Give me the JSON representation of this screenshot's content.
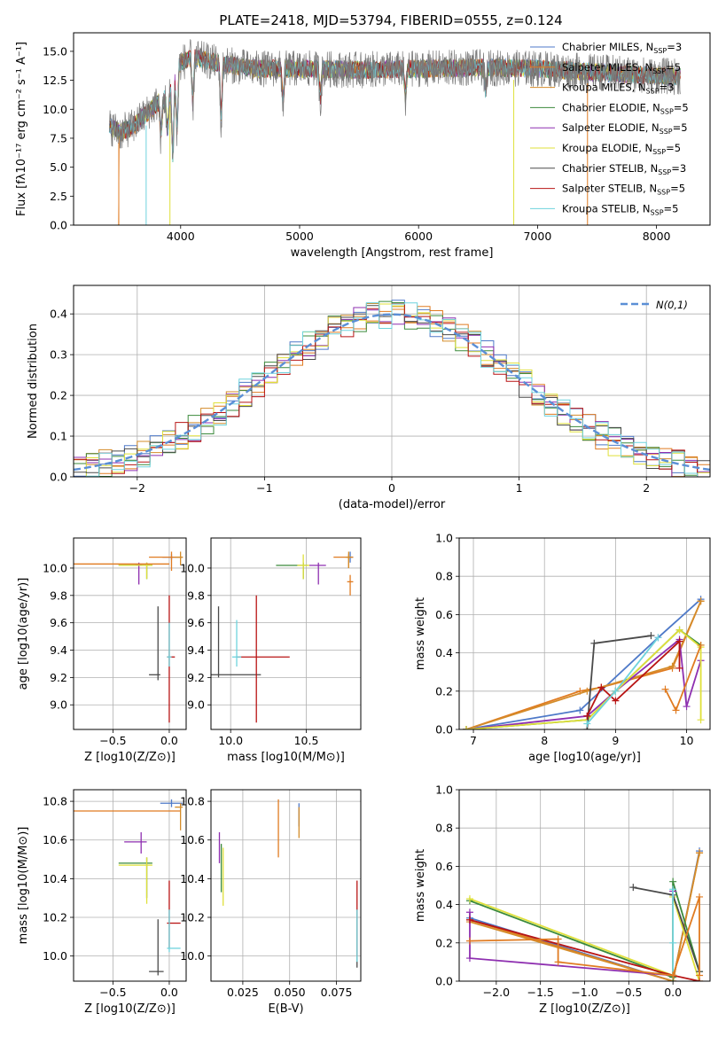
{
  "title": "PLATE=2418, MJD=53794, FIBERID=0555, z=0.124",
  "colors": {
    "Chabrier MILES": "#4e79c8",
    "Salpeter MILES": "#e07b21",
    "Kroupa MILES": "#d48c2a",
    "Chabrier ELODIE": "#3b8a3b",
    "Salpeter ELODIE": "#8e2fb0",
    "Kroupa ELODIE": "#dfe03a",
    "Chabrier STELIB": "#4a4a4a",
    "Salpeter STELIB": "#b81414",
    "Kroupa STELIB": "#6ed3dd"
  },
  "legend": [
    {
      "name": "Chabrier MILES",
      "pre": "Chabrier MILES, N",
      "sub": "SSP",
      "post": "=3"
    },
    {
      "name": "Salpeter MILES",
      "pre": "Salpeter MILES, N",
      "sub": "SSP",
      "post": "=5"
    },
    {
      "name": "Kroupa MILES",
      "pre": "Kroupa MILES, N",
      "sub": "SSP",
      "post": "=3"
    },
    {
      "name": "Chabrier ELODIE",
      "pre": "Chabrier ELODIE, N",
      "sub": "SSP",
      "post": "=5"
    },
    {
      "name": "Salpeter ELODIE",
      "pre": "Salpeter ELODIE, N",
      "sub": "SSP",
      "post": "=5"
    },
    {
      "name": "Kroupa ELODIE",
      "pre": "Kroupa ELODIE, N",
      "sub": "SSP",
      "post": "=5"
    },
    {
      "name": "Chabrier STELIB",
      "pre": "Chabrier STELIB, N",
      "sub": "SSP",
      "post": "=3"
    },
    {
      "name": "Salpeter STELIB",
      "pre": "Salpeter STELIB, N",
      "sub": "SSP",
      "post": "=5"
    },
    {
      "name": "Kroupa STELIB",
      "pre": "Kroupa STELIB, N",
      "sub": "SSP",
      "post": "=5"
    }
  ],
  "chart_data": [
    {
      "id": "spectrum",
      "type": "line",
      "xlabel": "wavelength [Angstrom, rest frame]",
      "ylabel": "Flux [fλ10⁻¹⁷ erg cm⁻² s⁻¹ A⁻¹]",
      "xlim": [
        3100,
        8450
      ],
      "ylim": [
        0,
        16.6
      ],
      "xticks": [
        "4000",
        "5000",
        "6000",
        "7000",
        "8000"
      ],
      "yticks": [
        "0.0",
        "2.5",
        "5.0",
        "7.5",
        "10.0",
        "12.5",
        "15.0"
      ],
      "continuum": {
        "x": [
          3400,
          3500,
          3600,
          3700,
          3800,
          3900,
          3950,
          4000,
          4100,
          4300,
          4600,
          5000,
          5500,
          6000,
          6500,
          7000,
          7500,
          8000,
          8200
        ],
        "y": [
          8.5,
          8.0,
          8.5,
          9.5,
          10.5,
          11.0,
          12.5,
          14.0,
          14.5,
          14.0,
          13.5,
          13.5,
          13.4,
          13.5,
          13.6,
          13.5,
          13.2,
          12.9,
          12.8
        ]
      },
      "series_note": "observed spectrum (grey) with nine stellar population model fits"
    },
    {
      "id": "residuals",
      "type": "area",
      "xlabel": "(data-model)/error",
      "ylabel": "Normed distribution",
      "xlim": [
        -2.5,
        2.5
      ],
      "ylim": [
        0,
        0.47
      ],
      "xticks": [
        "−2",
        "−1",
        "0",
        "1",
        "2"
      ],
      "yticks": [
        "0.0",
        "0.1",
        "0.2",
        "0.3",
        "0.4"
      ],
      "bin_width": 0.1,
      "gaussian_label": "N(0,1)",
      "gaussian": {
        "mean": 0,
        "sigma": 1
      }
    },
    {
      "id": "age-vs-Z",
      "type": "scatter",
      "xlabel": "Z [log10(Z/Z⊙)]",
      "ylabel": "age  [log10(age/yr)]",
      "xlim": [
        -0.85,
        0.15
      ],
      "ylim": [
        8.82,
        10.22
      ],
      "xticks": [
        "−0.5",
        "0.0"
      ],
      "yticks": [
        "9.0",
        "9.2",
        "9.4",
        "9.6",
        "9.8",
        "10.0"
      ],
      "points": [
        {
          "s": "Chabrier MILES",
          "x": 0.02,
          "xerr": [
            0.08,
            0.1
          ],
          "y": 10.08,
          "yerr": [
            0.02,
            0.02
          ]
        },
        {
          "s": "Salpeter MILES",
          "x": 0.02,
          "xerr": [
            0.2,
            0.1
          ],
          "y": 10.08,
          "yerr": [
            0.1,
            0.04
          ]
        },
        {
          "s": "Kroupa MILES",
          "x": 0.1,
          "xerr": [
            0.05,
            0.02
          ],
          "y": 10.08,
          "yerr": [
            0.06,
            0.04
          ]
        },
        {
          "s": "Chabrier ELODIE",
          "x": -0.2,
          "xerr": [
            0.25,
            0.05
          ],
          "y": 10.02,
          "yerr": [
            0.1,
            0.02
          ]
        },
        {
          "s": "Salpeter ELODIE",
          "x": -0.27,
          "xerr": [
            0.03,
            0.03
          ],
          "y": 10.02,
          "yerr": [
            0.14,
            0.02
          ]
        },
        {
          "s": "Kroupa ELODIE",
          "x": -0.2,
          "xerr": [
            0.25,
            0.05
          ],
          "y": 10.02,
          "yerr": [
            0.1,
            0.02
          ]
        },
        {
          "s": "Chabrier STELIB",
          "x": -0.1,
          "xerr": [
            0.08,
            0.02
          ],
          "y": 9.22,
          "yerr": [
            0.04,
            0.5
          ]
        },
        {
          "s": "Salpeter STELIB",
          "x": 0.0,
          "xerr": [
            0.02,
            0.05
          ],
          "y": 9.35,
          "yerr": [
            0.48,
            0.45
          ]
        },
        {
          "s": "Kroupa STELIB",
          "x": 0.0,
          "xerr": [
            0.02,
            0.02
          ],
          "y": 9.35,
          "yerr": [
            0.07,
            0.25
          ]
        },
        {
          "s": "Salpeter MILES",
          "x": -0.1,
          "xerr": [
            0.75,
            0.1
          ],
          "y": 10.03,
          "yerr": [
            0.0,
            0.0
          ]
        }
      ]
    },
    {
      "id": "age-vs-mass",
      "type": "scatter",
      "xlabel": "mass [log10(M/M⊙)]",
      "ylabel": "",
      "xlim": [
        9.87,
        10.86
      ],
      "ylim": [
        8.82,
        10.22
      ],
      "xticks": [
        "10.0",
        "10.5"
      ],
      "yticks": [
        "9.0",
        "9.2",
        "9.4",
        "9.6",
        "9.8",
        "10.0"
      ],
      "points": [
        {
          "s": "Chabrier MILES",
          "x": 10.79,
          "xerr": [
            0.02,
            0.02
          ],
          "y": 10.08,
          "yerr": [
            0.04,
            0.04
          ]
        },
        {
          "s": "Salpeter MILES",
          "x": 10.78,
          "xerr": [
            0.1,
            0.03
          ],
          "y": 10.08,
          "yerr": [
            0.08,
            0.02
          ]
        },
        {
          "s": "Kroupa MILES",
          "x": 10.78,
          "xerr": [
            0.02,
            0.02
          ],
          "y": 10.08,
          "yerr": [
            0.08,
            0.04
          ]
        },
        {
          "s": "Chabrier ELODIE",
          "x": 10.48,
          "xerr": [
            0.18,
            0.03
          ],
          "y": 10.02,
          "yerr": [
            0.1,
            0.02
          ]
        },
        {
          "s": "Salpeter ELODIE",
          "x": 10.58,
          "xerr": [
            0.06,
            0.05
          ],
          "y": 10.02,
          "yerr": [
            0.14,
            0.02
          ]
        },
        {
          "s": "Kroupa ELODIE",
          "x": 10.48,
          "xerr": [
            0.04,
            0.04
          ],
          "y": 10.02,
          "yerr": [
            0.1,
            0.08
          ]
        },
        {
          "s": "Chabrier STELIB",
          "x": 9.92,
          "xerr": [
            0.06,
            0.28
          ],
          "y": 9.22,
          "yerr": [
            0.02,
            0.5
          ]
        },
        {
          "s": "Salpeter STELIB",
          "x": 10.17,
          "xerr": [
            0.13,
            0.22
          ],
          "y": 9.35,
          "yerr": [
            0.48,
            0.45
          ]
        },
        {
          "s": "Kroupa STELIB",
          "x": 10.04,
          "xerr": [
            0.03,
            0.03
          ],
          "y": 9.35,
          "yerr": [
            0.07,
            0.27
          ]
        },
        {
          "s": "Salpeter MILES",
          "x": 10.79,
          "xerr": [
            0.02,
            0.02
          ],
          "y": 9.9,
          "yerr": [
            0.1,
            0.05
          ]
        }
      ]
    },
    {
      "id": "massweight-vs-age",
      "type": "line",
      "xlabel": "age  [log10(age/yr)]",
      "ylabel": "mass weight",
      "xlim": [
        6.8,
        10.33
      ],
      "ylim": [
        0,
        1.0
      ],
      "xticks": [
        "7",
        "8",
        "9",
        "10"
      ],
      "yticks": [
        "0.0",
        "0.2",
        "0.4",
        "0.6",
        "0.8",
        "1.0"
      ],
      "series": [
        {
          "s": "Chabrier MILES",
          "x": [
            6.9,
            8.5,
            9.6,
            10.2
          ],
          "y": [
            0.0,
            0.1,
            0.48,
            0.68
          ]
        },
        {
          "s": "Salpeter MILES",
          "x": [
            6.9,
            8.5,
            8.8,
            9.8,
            10.2
          ],
          "y": [
            0.0,
            0.2,
            0.22,
            0.32,
            0.67
          ]
        },
        {
          "s": "Kroupa MILES",
          "x": [
            6.9,
            8.6,
            9.8,
            10.2
          ],
          "y": [
            0.0,
            0.2,
            0.33,
            0.67
          ]
        },
        {
          "s": "Chabrier ELODIE",
          "x": [
            6.9,
            8.6,
            9.0,
            9.9,
            10.2
          ],
          "y": [
            0.0,
            0.05,
            0.2,
            0.52,
            0.44
          ]
        },
        {
          "s": "Salpeter ELODIE",
          "x": [
            6.9,
            8.6,
            9.0,
            9.9,
            10.0,
            10.2
          ],
          "y": [
            0.0,
            0.07,
            0.2,
            0.47,
            0.12,
            0.36
          ]
        },
        {
          "s": "Kroupa ELODIE",
          "x": [
            6.9,
            8.6,
            9.0,
            9.9,
            10.2,
            10.2
          ],
          "y": [
            0.0,
            0.05,
            0.2,
            0.52,
            0.43,
            0.05
          ]
        },
        {
          "s": "Chabrier STELIB",
          "x": [
            8.6,
            8.7,
            9.5
          ],
          "y": [
            0.0,
            0.45,
            0.49
          ]
        },
        {
          "s": "Salpeter STELIB",
          "x": [
            8.6,
            8.8,
            9.0,
            9.9,
            9.9
          ],
          "y": [
            0.07,
            0.22,
            0.15,
            0.46,
            0.32
          ]
        },
        {
          "s": "Kroupa STELIB",
          "x": [
            8.6,
            9.0,
            9.6
          ],
          "y": [
            0.03,
            0.2,
            0.48
          ]
        },
        {
          "s": "Salpeter MILES",
          "x": [
            9.7,
            9.85,
            10.2
          ],
          "y": [
            0.21,
            0.1,
            0.44
          ]
        }
      ]
    },
    {
      "id": "mass-vs-Z",
      "type": "scatter",
      "xlabel": "Z [log10(Z/Z⊙)]",
      "ylabel": "mass [log10(M/M⊙)]",
      "xlim": [
        -0.85,
        0.15
      ],
      "ylim": [
        9.87,
        10.86
      ],
      "xticks": [
        "−0.5",
        "0.0"
      ],
      "yticks": [
        "10.0",
        "10.2",
        "10.4",
        "10.6",
        "10.8"
      ],
      "points": [
        {
          "s": "Chabrier MILES",
          "x": 0.02,
          "xerr": [
            0.1,
            0.1
          ],
          "y": 10.79,
          "yerr": [
            0.02,
            0.02
          ]
        },
        {
          "s": "Salpeter MILES",
          "x": -0.1,
          "xerr": [
            0.75,
            0.2
          ],
          "y": 10.75,
          "yerr": [
            0.0,
            0.0
          ]
        },
        {
          "s": "Kroupa MILES",
          "x": 0.1,
          "xerr": [
            0.05,
            0.02
          ],
          "y": 10.77,
          "yerr": [
            0.12,
            0.02
          ]
        },
        {
          "s": "Chabrier ELODIE",
          "x": -0.2,
          "xerr": [
            0.25,
            0.05
          ],
          "y": 10.48,
          "yerr": [
            0.18,
            0.03
          ]
        },
        {
          "s": "Salpeter ELODIE",
          "x": -0.25,
          "xerr": [
            0.15,
            0.05
          ],
          "y": 10.59,
          "yerr": [
            0.06,
            0.05
          ]
        },
        {
          "s": "Kroupa ELODIE",
          "x": -0.2,
          "xerr": [
            0.25,
            0.05
          ],
          "y": 10.47,
          "yerr": [
            0.2,
            0.04
          ]
        },
        {
          "s": "Chabrier STELIB",
          "x": -0.1,
          "xerr": [
            0.08,
            0.05
          ],
          "y": 9.92,
          "yerr": [
            0.02,
            0.27
          ]
        },
        {
          "s": "Salpeter STELIB",
          "x": 0.0,
          "xerr": [
            0.02,
            0.1
          ],
          "y": 10.17,
          "yerr": [
            0.13,
            0.22
          ]
        },
        {
          "s": "Kroupa STELIB",
          "x": 0.0,
          "xerr": [
            0.02,
            0.1
          ],
          "y": 10.04,
          "yerr": [
            0.02,
            0.2
          ]
        }
      ]
    },
    {
      "id": "mass-vs-EBV",
      "type": "scatter",
      "xlabel": "E(B-V)",
      "ylabel": "",
      "xlim": [
        0.008,
        0.088
      ],
      "ylim": [
        9.87,
        10.86
      ],
      "xticks": [
        "0.025",
        "0.050",
        "0.075"
      ],
      "yticks": [
        "10.0",
        "10.2",
        "10.4",
        "10.6",
        "10.8"
      ],
      "points": [
        {
          "s": "Chabrier MILES",
          "x": 0.055,
          "yerr": [
            0.08,
            0.04
          ],
          "y": 10.75
        },
        {
          "s": "Salpeter MILES",
          "x": 0.044,
          "yerr": [
            0.24,
            0.06
          ],
          "y": 10.75
        },
        {
          "s": "Kroupa MILES",
          "x": 0.055,
          "yerr": [
            0.14,
            0.02
          ],
          "y": 10.75
        },
        {
          "s": "Chabrier ELODIE",
          "x": 0.0135,
          "yerr": [
            0.15,
            0.1
          ],
          "y": 10.48
        },
        {
          "s": "Salpeter ELODIE",
          "x": 0.0125,
          "yerr": [
            0.1,
            0.06
          ],
          "y": 10.58
        },
        {
          "s": "Kroupa ELODIE",
          "x": 0.0145,
          "yerr": [
            0.2,
            0.1
          ],
          "y": 10.46
        },
        {
          "s": "Chabrier STELIB",
          "x": 0.086,
          "yerr": [
            0.1,
            0.2
          ],
          "y": 10.04
        },
        {
          "s": "Salpeter STELIB",
          "x": 0.086,
          "yerr": [
            0.17,
            0.22
          ],
          "y": 10.17
        },
        {
          "s": "Kroupa STELIB",
          "x": 0.086,
          "yerr": [
            0.07,
            0.2
          ],
          "y": 10.04
        }
      ]
    },
    {
      "id": "massweight-vs-Z",
      "type": "line",
      "xlabel": "Z [log10(Z/Z⊙)]",
      "ylabel": "mass weight",
      "xlim": [
        -2.42,
        0.42
      ],
      "ylim": [
        0,
        1.0
      ],
      "xticks": [
        "−2.0",
        "−1.5",
        "−1.0",
        "−0.5",
        "0.0"
      ],
      "yticks": [
        "0.0",
        "0.2",
        "0.4",
        "0.6",
        "0.8",
        "1.0"
      ],
      "series": [
        {
          "s": "Chabrier MILES",
          "x": [
            -2.3,
            0.0,
            0.3
          ],
          "y": [
            0.33,
            0.0,
            0.68
          ]
        },
        {
          "s": "Salpeter MILES",
          "x": [
            -2.3,
            0.0,
            0.3
          ],
          "y": [
            0.32,
            0.0,
            0.67
          ]
        },
        {
          "s": "Kroupa MILES",
          "x": [
            -2.3,
            0.0,
            0.3
          ],
          "y": [
            0.31,
            0.0,
            0.67
          ]
        },
        {
          "s": "Chabrier ELODIE",
          "x": [
            -2.3,
            0.0,
            0.0,
            0.3
          ],
          "y": [
            0.42,
            0.02,
            0.52,
            0.05
          ]
        },
        {
          "s": "Salpeter ELODIE",
          "x": [
            -2.3,
            -2.3,
            0.0,
            0.0
          ],
          "y": [
            0.36,
            0.12,
            0.03,
            0.47
          ]
        },
        {
          "s": "Kroupa ELODIE",
          "x": [
            -2.3,
            0.0,
            0.0,
            0.3
          ],
          "y": [
            0.43,
            0.03,
            0.44,
            0.0
          ]
        },
        {
          "s": "Chabrier STELIB",
          "x": [
            -0.45,
            0.0,
            0.3
          ],
          "y": [
            0.49,
            0.45,
            0.05
          ]
        },
        {
          "s": "Salpeter STELIB",
          "x": [
            -2.3,
            0.0,
            0.3
          ],
          "y": [
            0.32,
            0.03,
            0.0
          ]
        },
        {
          "s": "Kroupa STELIB",
          "x": [
            0.0,
            0.0,
            0.0
          ],
          "y": [
            0.48,
            0.2,
            0.03
          ]
        },
        {
          "s": "Salpeter MILES",
          "x": [
            -2.3,
            -1.3,
            -1.3,
            0.0,
            0.3,
            0.3
          ],
          "y": [
            0.21,
            0.22,
            0.1,
            0.03,
            0.44,
            0.03
          ]
        }
      ]
    }
  ]
}
